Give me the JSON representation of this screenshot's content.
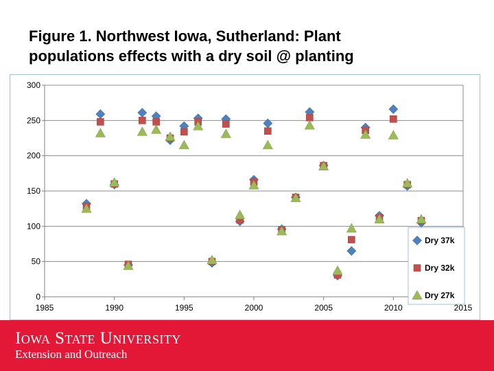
{
  "slide": {
    "title_line1": "Figure 1. Northwest Iowa, Sutherland: Plant",
    "title_line2": "populations effects with a dry soil @ planting"
  },
  "footer": {
    "logo_main": "Iowa State University",
    "logo_sub": "Extension and Outreach",
    "band_color": "#e31837"
  },
  "chart_data": {
    "type": "scatter",
    "title": "Figure 1. Northwest Iowa, Sutherland: Plant populations effects with a dry soil @ planting",
    "xlabel": "",
    "ylabel": "",
    "xlim": [
      1985,
      2015
    ],
    "ylim": [
      0,
      300
    ],
    "xticks": [
      1985,
      1990,
      1995,
      2000,
      2005,
      2010,
      2015
    ],
    "yticks": [
      0,
      50,
      100,
      150,
      200,
      250,
      300
    ],
    "grid": true,
    "legend_position": "bottom-right",
    "series": [
      {
        "name": "Dry 37k",
        "marker": "diamond",
        "color": "#4f81bd",
        "points": [
          [
            1988,
            132
          ],
          [
            1989,
            259
          ],
          [
            1990,
            159
          ],
          [
            1991,
            45
          ],
          [
            1992,
            261
          ],
          [
            1993,
            256
          ],
          [
            1994,
            222
          ],
          [
            1995,
            242
          ],
          [
            1996,
            253
          ],
          [
            1997,
            48
          ],
          [
            1998,
            252
          ],
          [
            1999,
            107
          ],
          [
            2000,
            166
          ],
          [
            2001,
            246
          ],
          [
            2002,
            96
          ],
          [
            2003,
            141
          ],
          [
            2004,
            262
          ],
          [
            2005,
            186
          ],
          [
            2006,
            30
          ],
          [
            2007,
            65
          ],
          [
            2008,
            240
          ],
          [
            2009,
            115
          ],
          [
            2010,
            266
          ],
          [
            2011,
            157
          ],
          [
            2012,
            105
          ]
        ]
      },
      {
        "name": "Dry 32k",
        "marker": "square",
        "color": "#c0504d",
        "points": [
          [
            1988,
            128
          ],
          [
            1989,
            248
          ],
          [
            1990,
            160
          ],
          [
            1991,
            46
          ],
          [
            1992,
            250
          ],
          [
            1993,
            248
          ],
          [
            1994,
            225
          ],
          [
            1995,
            234
          ],
          [
            1996,
            248
          ],
          [
            1997,
            50
          ],
          [
            1998,
            245
          ],
          [
            1999,
            109
          ],
          [
            2000,
            163
          ],
          [
            2001,
            235
          ],
          [
            2002,
            95
          ],
          [
            2003,
            141
          ],
          [
            2004,
            254
          ],
          [
            2005,
            186
          ],
          [
            2006,
            31
          ],
          [
            2007,
            81
          ],
          [
            2008,
            236
          ],
          [
            2009,
            112
          ],
          [
            2010,
            252
          ],
          [
            2011,
            159
          ],
          [
            2012,
            108
          ]
        ]
      },
      {
        "name": "Dry 27k",
        "marker": "triangle",
        "color": "#9bbb59",
        "points": [
          [
            1988,
            125
          ],
          [
            1989,
            232
          ],
          [
            1990,
            162
          ],
          [
            1991,
            44
          ],
          [
            1992,
            234
          ],
          [
            1993,
            237
          ],
          [
            1994,
            227
          ],
          [
            1995,
            215
          ],
          [
            1996,
            242
          ],
          [
            1997,
            52
          ],
          [
            1998,
            231
          ],
          [
            1999,
            116
          ],
          [
            2000,
            158
          ],
          [
            2001,
            215
          ],
          [
            2002,
            93
          ],
          [
            2003,
            140
          ],
          [
            2004,
            243
          ],
          [
            2005,
            185
          ],
          [
            2006,
            37
          ],
          [
            2007,
            97
          ],
          [
            2008,
            230
          ],
          [
            2009,
            110
          ],
          [
            2010,
            229
          ],
          [
            2011,
            161
          ],
          [
            2012,
            110
          ]
        ]
      }
    ]
  }
}
